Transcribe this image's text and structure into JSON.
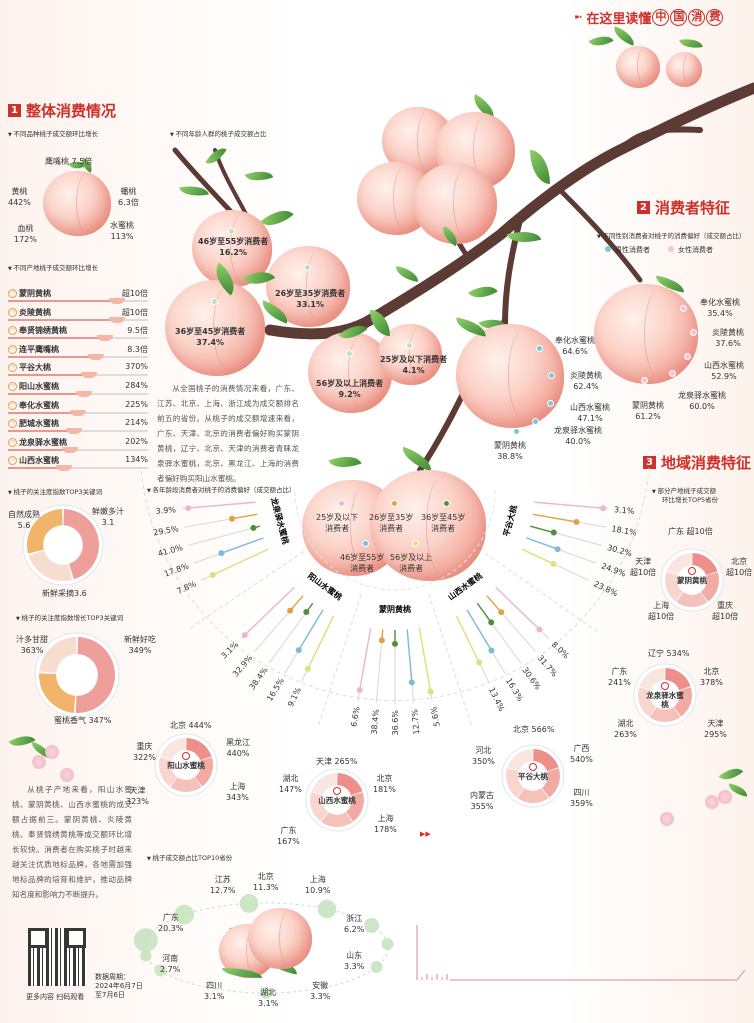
{
  "header": {
    "prefix": "在这里读懂",
    "circled": [
      "中",
      "国",
      "消",
      "费"
    ]
  },
  "section1": {
    "number": "1",
    "title": "整体消费情况",
    "variety_subtitle": "不同品种桃子成交额环比增长",
    "varieties": [
      {
        "name": "鹰嘴桃",
        "value": "7.5倍"
      },
      {
        "name": "黄桃",
        "value": "442%"
      },
      {
        "name": "蟠桃",
        "value": "6.3倍"
      },
      {
        "name": "血桃",
        "value": "172%"
      },
      {
        "name": "水蜜桃",
        "value": "113%"
      }
    ],
    "origin_subtitle": "不同产地桃子成交额环比增长",
    "origins": [
      {
        "name": "蒙阴黄桃",
        "value": "超10倍",
        "fill": 0.78
      },
      {
        "name": "炎陵黄桃",
        "value": "超10倍",
        "fill": 0.78
      },
      {
        "name": "奉贤锦绣黄桃",
        "value": "9.5倍",
        "fill": 0.69
      },
      {
        "name": "连平鹰嘴桃",
        "value": "8.3倍",
        "fill": 0.63
      },
      {
        "name": "平谷大桃",
        "value": "370%",
        "fill": 0.58
      },
      {
        "name": "阳山水蜜桃",
        "value": "284%",
        "fill": 0.54
      },
      {
        "name": "奉化水蜜桃",
        "value": "225%",
        "fill": 0.5
      },
      {
        "name": "肥城水蜜桃",
        "value": "214%",
        "fill": 0.47
      },
      {
        "name": "龙泉驿水蜜桃",
        "value": "202%",
        "fill": 0.44
      },
      {
        "name": "山西水蜜桃",
        "value": "134%",
        "fill": 0.4
      }
    ],
    "keywords_subtitle": "桃子的关注度指数TOP3关键词",
    "keywords": [
      {
        "name": "自然成熟",
        "value": "5.6",
        "num": 5.6
      },
      {
        "name": "鲜嫩多汁",
        "value": "3.1",
        "num": 3.1
      },
      {
        "name": "新鲜采摘",
        "value": "3.6",
        "num": 3.6
      }
    ],
    "growth_subtitle": "桃子的关注度指数增长TOP3关键词",
    "growth_keywords": [
      {
        "name": "汁多甘甜",
        "value": "363%",
        "num": 363
      },
      {
        "name": "新鲜好吃",
        "value": "349%",
        "num": 349
      },
      {
        "name": "蜜桃香气",
        "value": "347%",
        "num": 347
      }
    ],
    "age_subtitle": "不同年龄人群的桃子成交额占比",
    "age_shares": [
      {
        "name": "46岁至55岁消费者",
        "value": "16.2%"
      },
      {
        "name": "26岁至35岁消费者",
        "value": "33.1%"
      },
      {
        "name": "36岁至45岁消费者",
        "value": "37.4%"
      },
      {
        "name": "56岁及以上消费者",
        "value": "9.2%"
      },
      {
        "name": "25岁及以下消费者",
        "value": "4.1%"
      }
    ],
    "paragraph": "从全国桃子的消费情况来看，广东、江苏、北京、上海、浙江成为成交额排名前五的省份。从桃子的成交额增速来看，广东、天津、北京的消费者偏好购买蒙阴黄桃，辽宁、北京、天津的消费者青睐龙泉驿水蜜桃，北京、黑龙江、上海的消费者偏好购买阳山水蜜桃。"
  },
  "section2": {
    "number": "2",
    "title": "消费者特征",
    "gender_subtitle": "不同性别消费者对桃子的消费偏好（成交额占比）",
    "legend": [
      {
        "name": "男性消费者",
        "color": "#7cc7dc"
      },
      {
        "name": "女性消费者",
        "color": "#f2c6d2"
      }
    ],
    "male": [
      {
        "name": "奉化水蜜桃",
        "value": "64.6%"
      },
      {
        "name": "炎陵黄桃",
        "value": "62.4%"
      },
      {
        "name": "山西水蜜桃",
        "value": "47.1%"
      },
      {
        "name": "龙泉驿水蜜桃",
        "value": "40.0%"
      },
      {
        "name": "蒙阴黄桃",
        "value": "38.8%"
      }
    ],
    "female": [
      {
        "name": "奉化水蜜桃",
        "value": "35.4%"
      },
      {
        "name": "炎陵黄桃",
        "value": "37.6%"
      },
      {
        "name": "山西水蜜桃",
        "value": "52.9%"
      },
      {
        "name": "龙泉驿水蜜桃",
        "value": "60.0%"
      },
      {
        "name": "蒙阴黄桃",
        "value": "61.2%"
      }
    ]
  },
  "age_preference": {
    "subtitle": "各年龄段消费者对桃子的消费偏好（成交额占比）",
    "age_groups": [
      {
        "name": "25岁及以下",
        "suffix": "消费者",
        "color": "#eab7cb"
      },
      {
        "name": "26岁至35岁",
        "suffix": "消费者",
        "color": "#e2a244"
      },
      {
        "name": "36岁至45岁",
        "suffix": "消费者",
        "color": "#4f8f3c"
      },
      {
        "name": "46岁至55岁",
        "suffix": "消费者",
        "color": "#7fbadb"
      },
      {
        "name": "56岁及以上",
        "suffix": "消费者",
        "color": "#dbe27a"
      }
    ],
    "varieties": [
      {
        "name": "龙泉驿水蜜桃",
        "values": [
          3.9,
          29.5,
          41.0,
          17.8,
          7.8
        ]
      },
      {
        "name": "阳山水蜜桃",
        "values": [
          3.1,
          32.9,
          38.4,
          16.5,
          9.1
        ]
      },
      {
        "name": "蒙阴黄桃",
        "values": [
          6.6,
          38.4,
          36.6,
          12.7,
          5.6
        ]
      },
      {
        "name": "山西水蜜桃",
        "values": [
          8.0,
          31.7,
          30.6,
          16.3,
          13.4
        ]
      },
      {
        "name": "平谷大桃",
        "values": [
          3.1,
          18.1,
          30.2,
          24.9,
          23.8
        ]
      }
    ]
  },
  "section3": {
    "number": "3",
    "title": "地域消费特征",
    "subtitle_line1": "部分产地桃子成交额",
    "subtitle_line2": "环比增长TOP5省份",
    "donuts": [
      {
        "name": "蒙阴黄桃",
        "items": [
          {
            "p": "广东",
            "v": "超10倍"
          },
          {
            "p": "北京",
            "v": "超10倍"
          },
          {
            "p": "重庆",
            "v": "超10倍"
          },
          {
            "p": "上海",
            "v": "超10倍"
          },
          {
            "p": "天津",
            "v": "超10倍"
          }
        ]
      },
      {
        "name": "龙泉驿水蜜桃",
        "items": [
          {
            "p": "辽宁",
            "v": "534%"
          },
          {
            "p": "北京",
            "v": "378%"
          },
          {
            "p": "天津",
            "v": "295%"
          },
          {
            "p": "湖北",
            "v": "263%"
          },
          {
            "p": "广东",
            "v": "241%"
          }
        ]
      },
      {
        "name": "阳山水蜜桃",
        "items": [
          {
            "p": "北京",
            "v": "444%"
          },
          {
            "p": "黑龙江",
            "v": "440%"
          },
          {
            "p": "上海",
            "v": "343%"
          },
          {
            "p": "天津",
            "v": "323%"
          },
          {
            "p": "重庆",
            "v": "322%"
          }
        ]
      },
      {
        "name": "山西水蜜桃",
        "items": [
          {
            "p": "天津",
            "v": "265%"
          },
          {
            "p": "北京",
            "v": "181%"
          },
          {
            "p": "上海",
            "v": "178%"
          },
          {
            "p": "广东",
            "v": "167%"
          },
          {
            "p": "湖北",
            "v": "147%"
          }
        ]
      },
      {
        "name": "平谷大桃",
        "items": [
          {
            "p": "北京",
            "v": "566%"
          },
          {
            "p": "广西",
            "v": "540%"
          },
          {
            "p": "四川",
            "v": "359%"
          },
          {
            "p": "内蒙古",
            "v": "355%"
          },
          {
            "p": "河北",
            "v": "350%"
          }
        ]
      }
    ],
    "paragraph": "从桃子产地来看，阳山水蜜桃、蒙阴黄桃、山西水蜜桃的成交额占据前三。蒙阴黄桃、炎陵黄桃、奉贤锦绣黄桃等成交额环比增长较快。消费者在购买桃子时越来越关注优质地标品牌，各地需加强地标品牌的培育和维护，推动品牌知名度和影响力不断提升。",
    "top10_subtitle": "桃子成交额占比TOP10省份",
    "top10": [
      {
        "p": "广东",
        "v": "20.3%",
        "num": 20.3
      },
      {
        "p": "江苏",
        "v": "12.7%",
        "num": 12.7
      },
      {
        "p": "北京",
        "v": "11.3%",
        "num": 11.3
      },
      {
        "p": "上海",
        "v": "10.9%",
        "num": 10.9
      },
      {
        "p": "浙江",
        "v": "6.2%",
        "num": 6.2
      },
      {
        "p": "山东",
        "v": "3.3%",
        "num": 3.3
      },
      {
        "p": "安徽",
        "v": "3.3%",
        "num": 3.3
      },
      {
        "p": "湖北",
        "v": "3.1%",
        "num": 3.1
      },
      {
        "p": "四川",
        "v": "3.1%",
        "num": 3.1
      },
      {
        "p": "河南",
        "v": "2.7%",
        "num": 2.7
      }
    ]
  },
  "footer": {
    "qr_caption": "更多内容 扫码观看",
    "period_label": "数据周期：",
    "period_line1": "2024年6月7日",
    "period_line2": "至7月6日",
    "arrows": "▶▶"
  },
  "colors": {
    "accent": "#d0302c",
    "male": "#7cc7dc",
    "female": "#f2c6d2",
    "leaf": "#4f8f3c",
    "bubble": "#bfe0b8"
  }
}
